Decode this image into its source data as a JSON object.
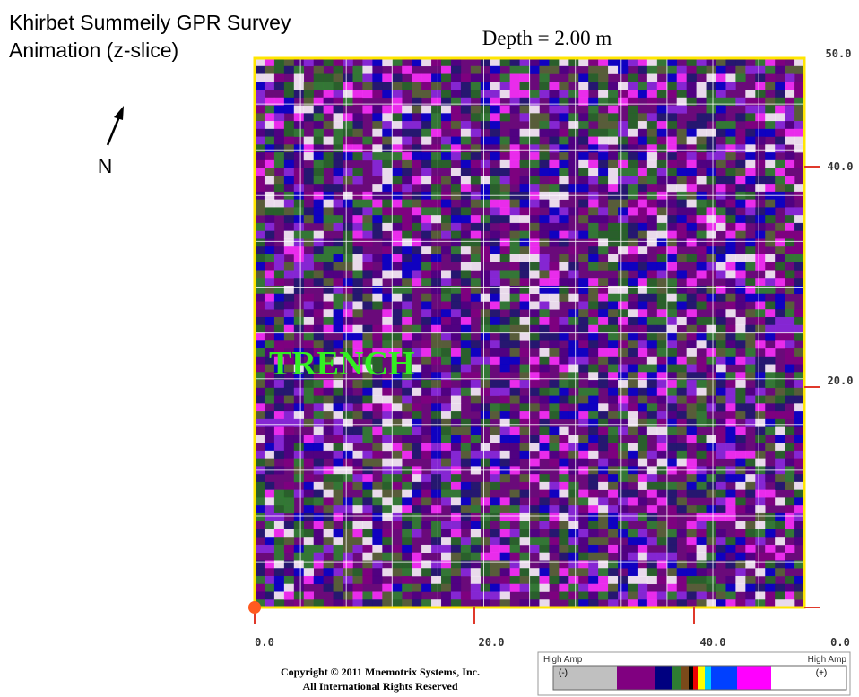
{
  "header": {
    "title_lines": [
      "Khirbet Summeily GPR Survey",
      "Animation (z-slice)"
    ],
    "depth": "Depth = 2.00 m"
  },
  "compass": {
    "label": "N"
  },
  "annotation": "TRENCH",
  "axes": {
    "x_labels": [
      "0.0",
      "20.0",
      "40.0",
      "0.0"
    ],
    "y_labels": [
      "50.0",
      "40.0",
      "20.0"
    ]
  },
  "legend": {
    "left_title": "High Amp",
    "left_sign": "(-)",
    "right_title": "High Amp",
    "right_sign": "(+)"
  },
  "copyright": [
    "Copyright © 2011 Mnemotrix Systems, Inc.",
    "All International Rights Reserved"
  ]
}
